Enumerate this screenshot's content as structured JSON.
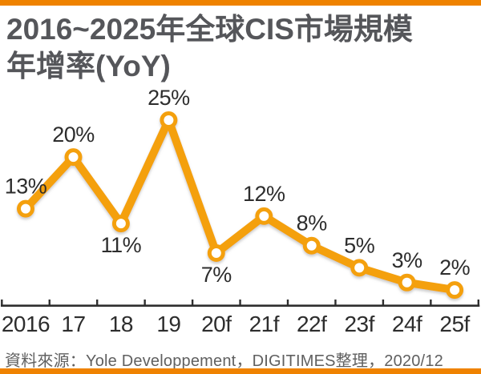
{
  "page": {
    "title_line1": "2016~2025年全球CIS市場規模",
    "title_line2": "年增率(YoY)",
    "source_note": "資料來源：Yole Developpement，DIGITIMES整理，2020/12"
  },
  "colors": {
    "accent_bar": "#EF8200",
    "line": "#F4A00E",
    "marker_fill": "#FFFFFF",
    "marker_ring": "#F4A00E",
    "title_text": "#55565A",
    "data_label_text": "#2D2D2D",
    "axis_text": "#2D2D2D",
    "axis_line": "#2F2F2F",
    "source_text": "#606060",
    "background": "#FFFFFF"
  },
  "chart_data": {
    "type": "line",
    "title": "2016~2025年全球CIS市場規模年增率(YoY)",
    "categories": [
      "2016",
      "17",
      "18",
      "19",
      "20f",
      "21f",
      "22f",
      "23f",
      "24f",
      "25f"
    ],
    "values": [
      13,
      20,
      11,
      25,
      7,
      12,
      8,
      5,
      3,
      2
    ],
    "data_labels": [
      "13%",
      "20%",
      "11%",
      "25%",
      "7%",
      "12%",
      "8%",
      "5%",
      "3%",
      "2%"
    ],
    "label_positions": [
      "above",
      "above",
      "below",
      "above",
      "below",
      "above",
      "above",
      "above",
      "above",
      "above"
    ],
    "unit": "%",
    "xlabel": "",
    "ylabel": "",
    "ylim": [
      0,
      25
    ],
    "grid": false,
    "legend": false,
    "marker": "circle",
    "source": "資料來源：Yole Developpement，DIGITIMES整理，2020/12"
  }
}
